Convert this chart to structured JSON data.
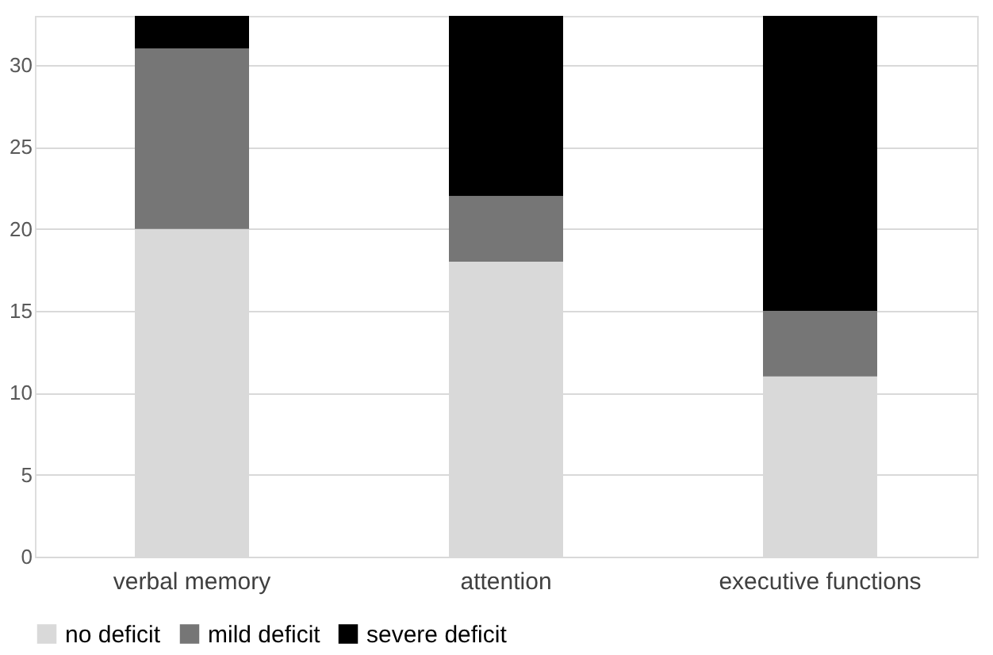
{
  "chart_data": {
    "type": "bar",
    "stacked": true,
    "categories": [
      "verbal memory",
      "attention",
      "executive functions"
    ],
    "series": [
      {
        "name": "no deficit",
        "color": "#d9d9d9",
        "values": [
          20,
          18,
          11
        ]
      },
      {
        "name": "mild deficit",
        "color": "#767676",
        "values": [
          11,
          4,
          4
        ]
      },
      {
        "name": "severe deficit",
        "color": "#000000",
        "values": [
          2,
          11,
          18
        ]
      }
    ],
    "ylim": [
      0,
      33
    ],
    "yticks": [
      0,
      5,
      10,
      15,
      20,
      25,
      30
    ],
    "grid": "y",
    "legend": "bottom"
  }
}
